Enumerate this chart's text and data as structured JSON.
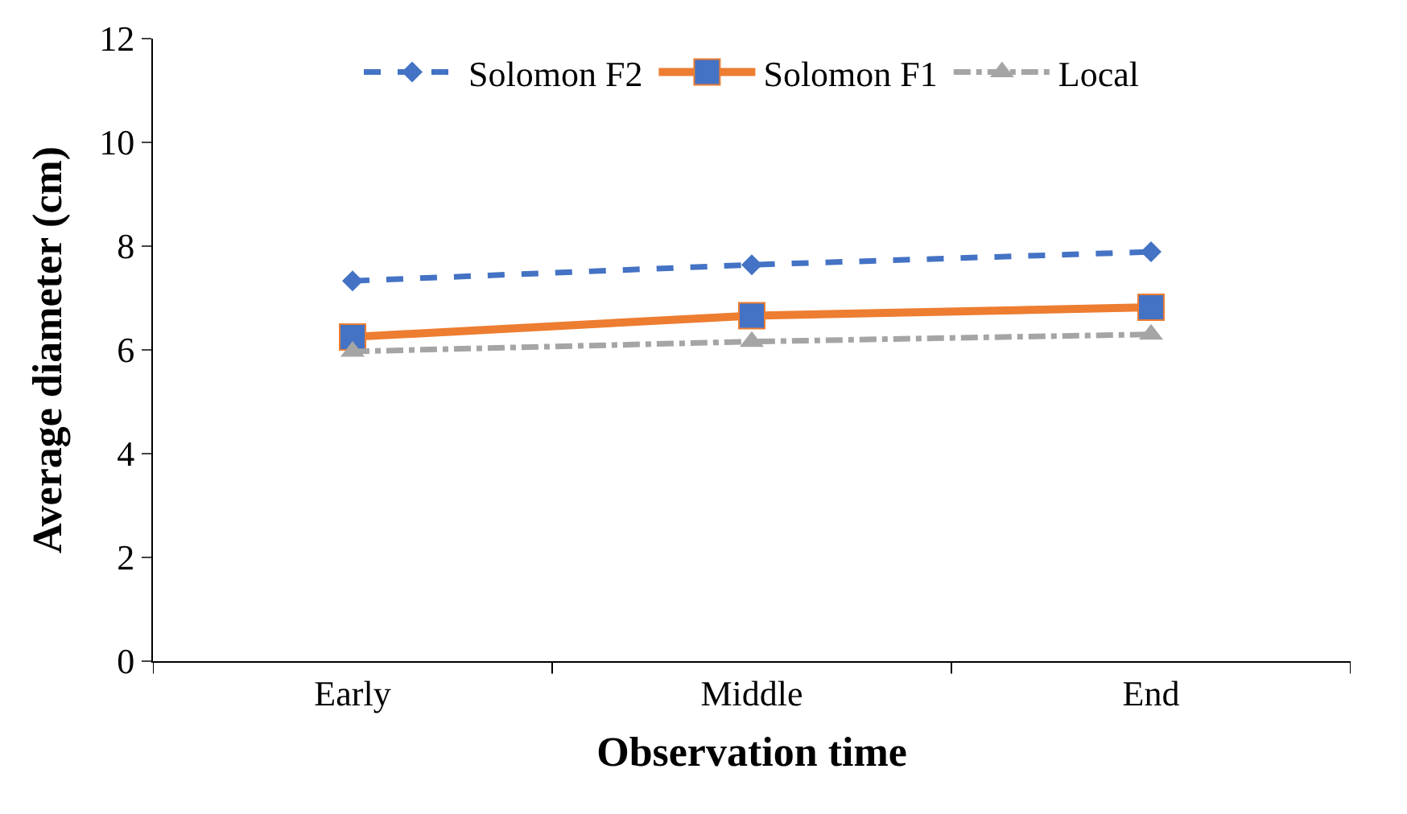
{
  "chart_data": {
    "type": "line",
    "xlabel": "Observation time",
    "ylabel": "Average diameter (cm)",
    "categories": [
      "Early",
      "Middle",
      "End"
    ],
    "series": [
      {
        "name": "Solomon F2",
        "color": "#4472c4",
        "values": [
          7.33,
          7.64,
          7.89
        ],
        "marker": "diamond",
        "line_style": "dashed"
      },
      {
        "name": "Solomon F1",
        "color": "#ed7d31",
        "colors": [
          "#4472c4",
          "#4472c4",
          "#4472c4"
        ],
        "values": [
          6.25,
          6.66,
          6.82
        ],
        "marker": "square",
        "line_style": "solid"
      },
      {
        "name": "Local",
        "color": "#a5a5a5",
        "values": [
          5.97,
          6.16,
          6.3
        ],
        "marker": "triangle",
        "line_style": "dashdot"
      }
    ],
    "ylim": [
      0,
      12
    ],
    "yticks": [
      0,
      2,
      4,
      6,
      8,
      10,
      12
    ],
    "legend": "top"
  }
}
